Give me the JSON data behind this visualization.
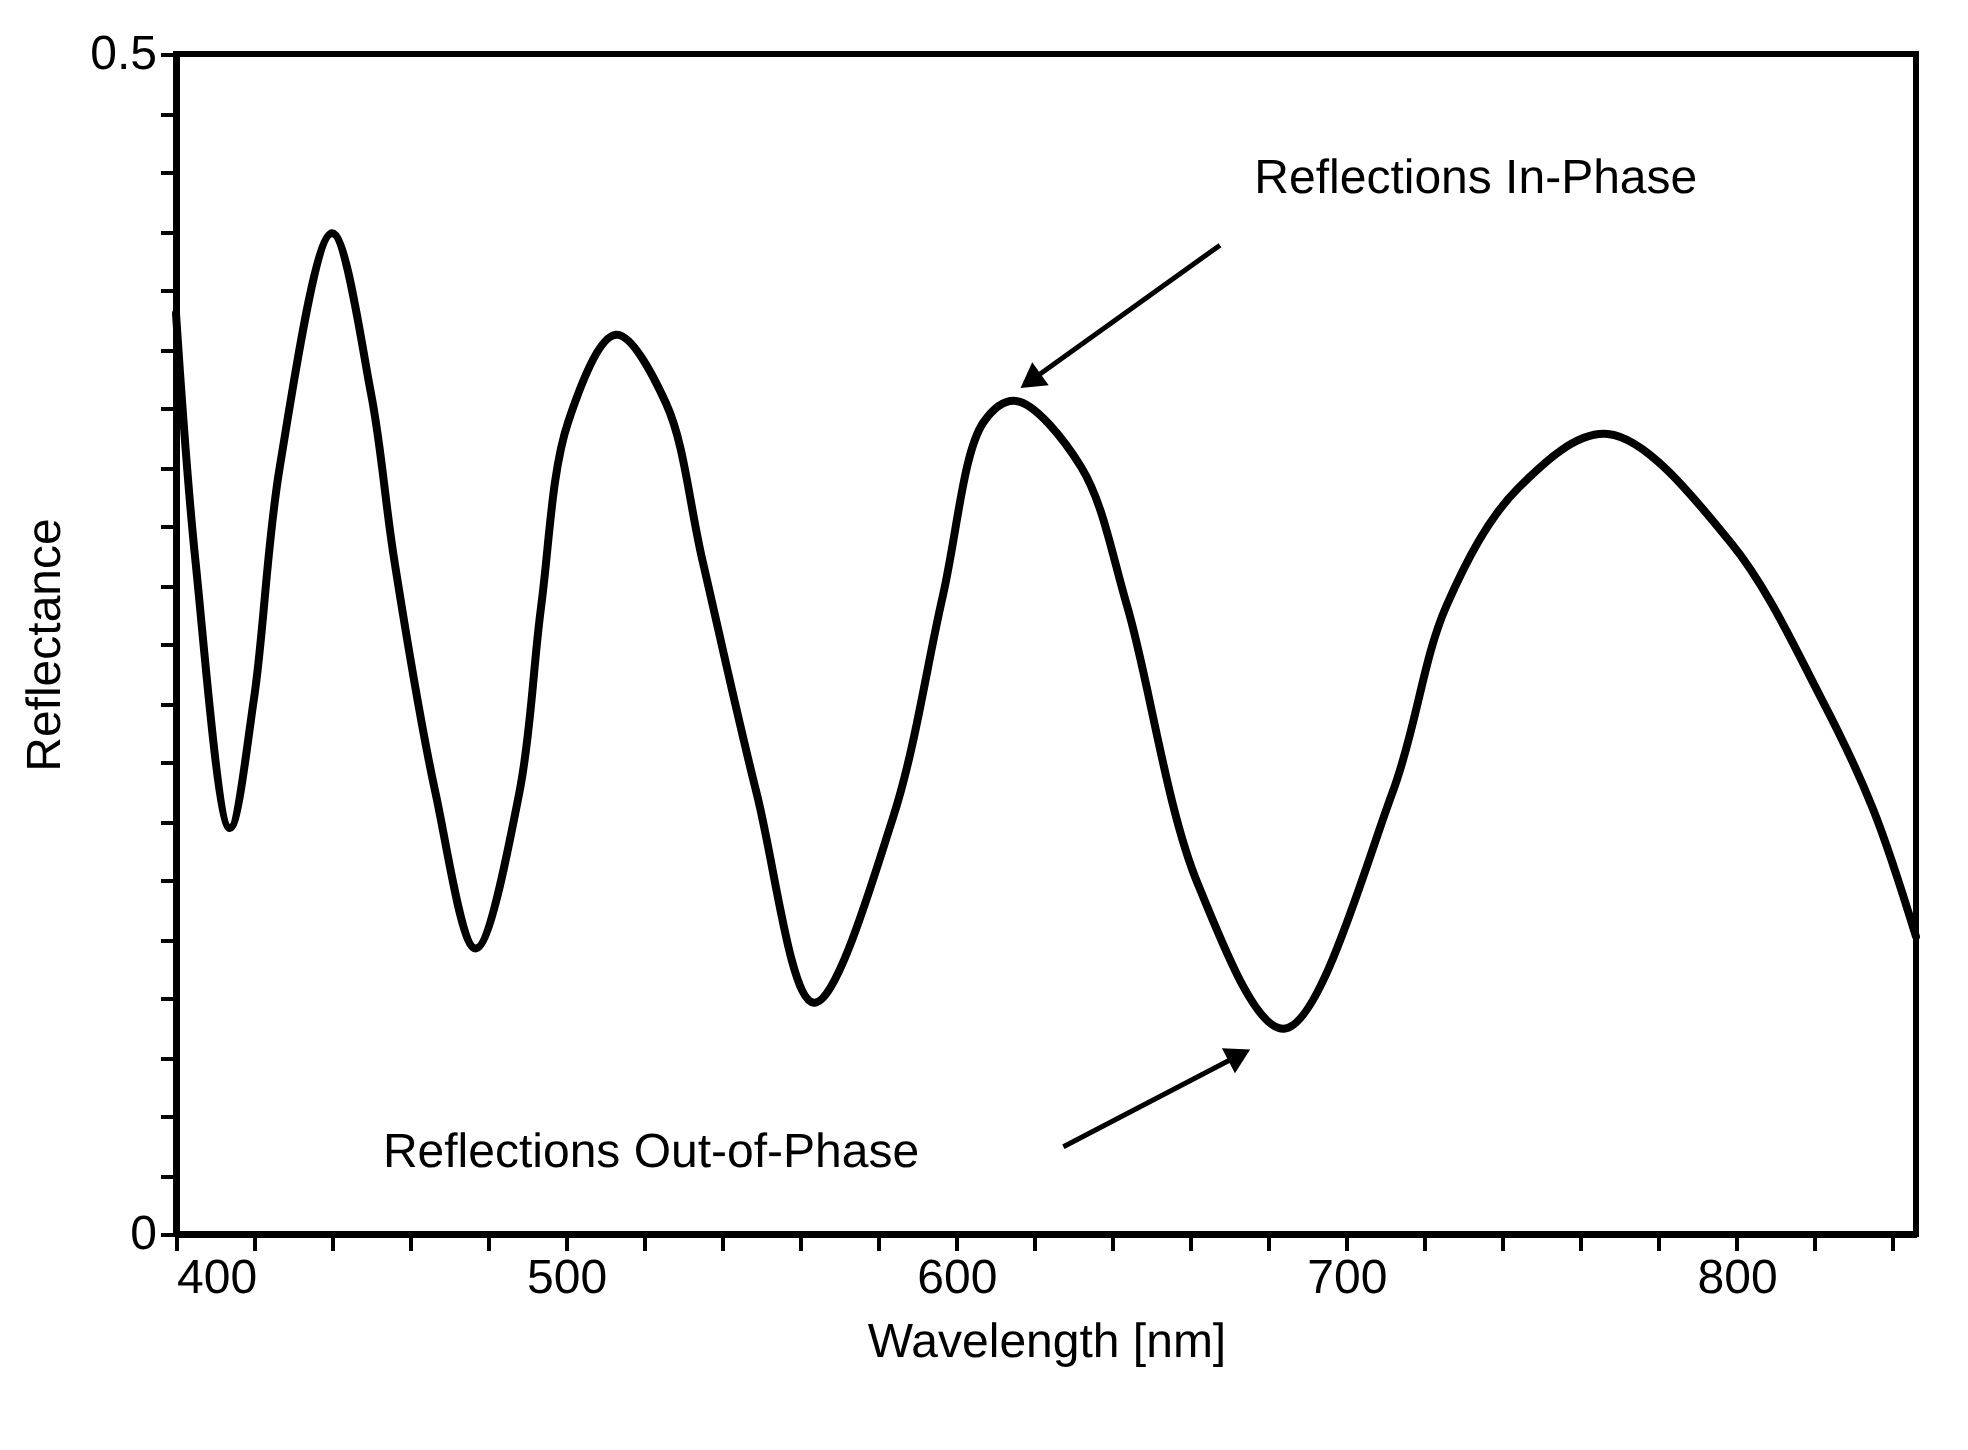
{
  "chart_data": {
    "type": "line",
    "xlabel": "Wavelength [nm]",
    "ylabel": "Reflectance",
    "x": [
      400,
      405,
      413.8,
      420,
      426.6,
      440,
      450,
      456,
      466.5,
      476.8,
      488,
      493.6,
      500.5,
      512.8,
      525.6,
      535,
      548.8,
      563.5,
      583.7,
      596.5,
      607,
      615.3,
      632,
      643.8,
      662,
      684,
      711.8,
      725.6,
      744,
      767,
      798.5,
      821.7,
      835,
      846
    ],
    "series": [
      {
        "color": "#000000",
        "values": [
          0.39,
          0.285,
          0.172,
          0.227,
          0.325,
          0.424,
          0.356,
          0.285,
          0.187,
          0.121,
          0.187,
          0.266,
          0.344,
          0.381,
          0.352,
          0.285,
          0.187,
          0.098,
          0.176,
          0.27,
          0.344,
          0.353,
          0.325,
          0.266,
          0.148,
          0.087,
          0.187,
          0.266,
          0.316,
          0.339,
          0.293,
          0.227,
          0.18,
          0.126
        ]
      }
    ],
    "xlim": [
      400,
      846
    ],
    "xticks": [
      400,
      {
        "value": 420,
        "label": null
      },
      {
        "value": 440,
        "label": null
      },
      {
        "value": 460,
        "label": null
      },
      {
        "value": 480,
        "label": null
      },
      500,
      {
        "value": 520,
        "label": null
      },
      {
        "value": 540,
        "label": null
      },
      {
        "value": 560,
        "label": null
      },
      {
        "value": 580,
        "label": null
      },
      600,
      {
        "value": 620,
        "label": null
      },
      {
        "value": 640,
        "label": null
      },
      {
        "value": 660,
        "label": null
      },
      {
        "value": 680,
        "label": null
      },
      700,
      {
        "value": 720,
        "label": null
      },
      {
        "value": 740,
        "label": null
      },
      {
        "value": 760,
        "label": null
      },
      {
        "value": 780,
        "label": null
      },
      800,
      {
        "value": 820,
        "label": null
      },
      {
        "value": 840,
        "label": null
      }
    ],
    "ylim": [
      0,
      0.5
    ],
    "yticks": [
      0,
      {
        "value": 0.025,
        "label": null
      },
      {
        "value": 0.05,
        "label": null
      },
      {
        "value": 0.075,
        "label": null
      },
      {
        "value": 0.1,
        "label": null
      },
      {
        "value": 0.125,
        "label": null
      },
      {
        "value": 0.15,
        "label": null
      },
      {
        "value": 0.175,
        "label": null
      },
      {
        "value": 0.2,
        "label": null
      },
      {
        "value": 0.225,
        "label": null
      },
      {
        "value": 0.25,
        "label": null
      },
      {
        "value": 0.275,
        "label": null
      },
      {
        "value": 0.3,
        "label": null
      },
      {
        "value": 0.325,
        "label": null
      },
      {
        "value": 0.35,
        "label": null
      },
      {
        "value": 0.375,
        "label": null
      },
      {
        "value": 0.4,
        "label": null
      },
      {
        "value": 0.425,
        "label": null
      },
      {
        "value": 0.45,
        "label": null
      },
      {
        "value": 0.475,
        "label": null
      },
      0.5
    ],
    "annotations": [
      "Reflections In-Phase",
      "Reflections Out-of-Phase"
    ],
    "grid": false,
    "marker": "none",
    "line_style": "solid"
  }
}
